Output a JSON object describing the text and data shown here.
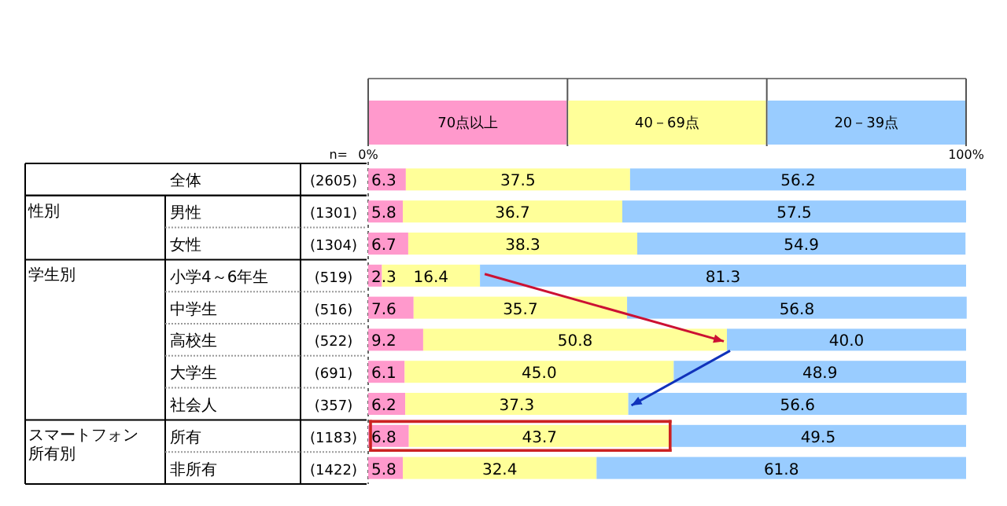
{
  "chart_data": {
    "type": "bar",
    "orientation": "horizontal",
    "stacked": true,
    "legend": "top",
    "categories": [
      "全体",
      "男性",
      "女性",
      "小学4～6年生",
      "中学生",
      "高校生",
      "大学生",
      "社会人",
      "所有",
      "非所有"
    ],
    "xlim": [
      0,
      100
    ],
    "xticks": [
      {
        "value": 0,
        "label": "0%"
      },
      {
        "value": 100,
        "label": "100%"
      }
    ],
    "series": [
      {
        "name": "70点以上",
        "color": "#ff99cc",
        "values": [
          6.3,
          5.8,
          6.7,
          2.3,
          7.6,
          9.2,
          6.1,
          6.2,
          6.8,
          5.8
        ],
        "value_labels": [
          "6.3",
          "5.8",
          "6.7",
          "2.3",
          "7.6",
          "9.2",
          "6.1",
          "6.2",
          "6.8",
          "5.8"
        ]
      },
      {
        "name": "40－69点",
        "color": "#ffff99",
        "values": [
          37.5,
          36.7,
          38.3,
          16.4,
          35.7,
          50.8,
          45.0,
          37.3,
          43.7,
          32.4
        ],
        "value_labels": [
          "37.5",
          "36.7",
          "38.3",
          "16.4",
          "35.7",
          "50.8",
          "45.0",
          "37.3",
          "43.7",
          "32.4"
        ]
      },
      {
        "name": "20－39点",
        "color": "#99ccff",
        "values": [
          56.2,
          57.5,
          54.9,
          81.3,
          56.8,
          40.0,
          48.9,
          56.6,
          49.5,
          61.8
        ],
        "value_labels": [
          "56.2",
          "57.5",
          "54.9",
          "81.3",
          "56.8",
          "40.0",
          "48.9",
          "56.6",
          "49.5",
          "61.8"
        ]
      }
    ],
    "annotations": [
      "n=",
      "性別",
      "学生別",
      "スマートフォン所有別",
      "(2605)",
      "(1301)",
      "(1304)",
      "(519)",
      "(516)",
      "(522)",
      "(691)",
      "(357)",
      "(1183)",
      "(1422)"
    ]
  }
}
